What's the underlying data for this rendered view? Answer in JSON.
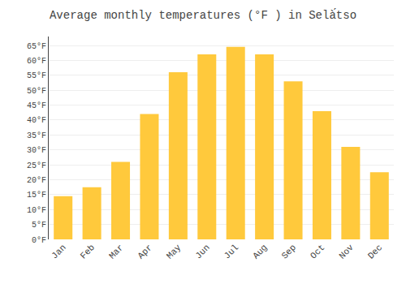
{
  "chart_data": {
    "type": "bar",
    "title": "Average monthly temperatures (°F ) in Selà́tso",
    "categories": [
      "Jan",
      "Feb",
      "Mar",
      "Apr",
      "May",
      "Jun",
      "Jul",
      "Aug",
      "Sep",
      "Oct",
      "Nov",
      "Dec"
    ],
    "values": [
      14.5,
      17.5,
      26.0,
      42.0,
      56.0,
      62.0,
      64.5,
      62.0,
      53.0,
      43.0,
      31.0,
      22.5
    ],
    "color": "#FFC93C",
    "ylim": [
      0,
      68
    ],
    "yticks": [
      {
        "value": 0,
        "label": "0°F"
      },
      {
        "value": 5,
        "label": "5°F"
      },
      {
        "value": 10,
        "label": "10°F"
      },
      {
        "value": 15,
        "label": "15°F"
      },
      {
        "value": 20,
        "label": "20°F"
      },
      {
        "value": 25,
        "label": "25°F"
      },
      {
        "value": 30,
        "label": "30°F"
      },
      {
        "value": 35,
        "label": "35°F"
      },
      {
        "value": 40,
        "label": "40°F"
      },
      {
        "value": 45,
        "label": "45°F"
      },
      {
        "value": 50,
        "label": "50°F"
      },
      {
        "value": 55,
        "label": "55°F"
      },
      {
        "value": 60,
        "label": "60°F"
      },
      {
        "value": 65,
        "label": "65°F"
      }
    ],
    "grid": true
  }
}
